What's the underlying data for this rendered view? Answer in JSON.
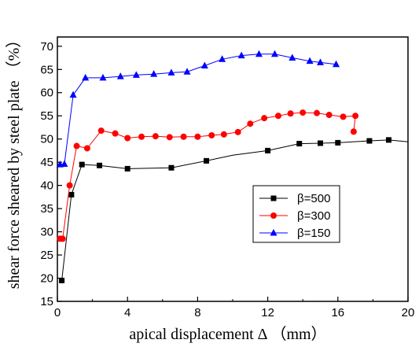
{
  "chart_data": {
    "type": "line",
    "xlabel": "apical displacement Δ （mm）",
    "ylabel": "shear force sheared by steel plate （%）",
    "xlim": [
      0,
      20
    ],
    "ylim": [
      15,
      72
    ],
    "xticks": [
      0,
      4,
      8,
      12,
      16,
      20
    ],
    "yticks": [
      15,
      20,
      25,
      30,
      35,
      40,
      45,
      50,
      55,
      60,
      65,
      70
    ],
    "grid": false,
    "legend_position": "center-right",
    "series": [
      {
        "name": "β=500",
        "color": "#000000",
        "marker": "square",
        "x": [
          0.25,
          0.8,
          1.4,
          2.4,
          4.0,
          6.5,
          8.5,
          10.0,
          12.0,
          13.8,
          15.0,
          16.0,
          17.8,
          18.9,
          20.0
        ],
        "y": [
          19.5,
          38.0,
          44.5,
          44.3,
          43.6,
          43.8,
          45.3,
          46.5,
          47.5,
          49.0,
          49.1,
          49.2,
          49.6,
          49.8,
          49.4
        ],
        "markers_shown": [
          true,
          true,
          true,
          true,
          true,
          true,
          true,
          false,
          true,
          true,
          true,
          true,
          true,
          true,
          false
        ]
      },
      {
        "name": "β=300",
        "color": "#ff0000",
        "marker": "circle",
        "x": [
          0.15,
          0.3,
          0.7,
          1.1,
          1.7,
          2.5,
          3.3,
          4.0,
          4.8,
          5.6,
          6.4,
          7.2,
          8.0,
          8.8,
          9.5,
          10.3,
          11.0,
          11.8,
          12.6,
          13.3,
          14.0,
          14.8,
          15.5,
          16.3,
          17.0,
          16.9
        ],
        "y": [
          28.5,
          28.5,
          40.0,
          48.5,
          48.0,
          51.8,
          51.2,
          50.2,
          50.5,
          50.6,
          50.4,
          50.5,
          50.5,
          50.8,
          51.0,
          51.5,
          53.3,
          54.5,
          55.0,
          55.5,
          55.7,
          55.6,
          55.2,
          54.8,
          55.0,
          51.6
        ]
      },
      {
        "name": "β=150",
        "color": "#0000ff",
        "marker": "triangle",
        "x": [
          0.15,
          0.4,
          0.9,
          1.6,
          2.6,
          3.6,
          4.5,
          5.5,
          6.5,
          7.4,
          8.4,
          9.4,
          10.5,
          11.5,
          12.4,
          13.4,
          14.4,
          15.0,
          15.9
        ],
        "y": [
          44.5,
          44.6,
          59.5,
          63.2,
          63.2,
          63.5,
          63.8,
          64.0,
          64.3,
          64.5,
          65.8,
          67.2,
          68.0,
          68.3,
          68.3,
          67.5,
          66.8,
          66.5,
          66.1
        ]
      }
    ]
  }
}
